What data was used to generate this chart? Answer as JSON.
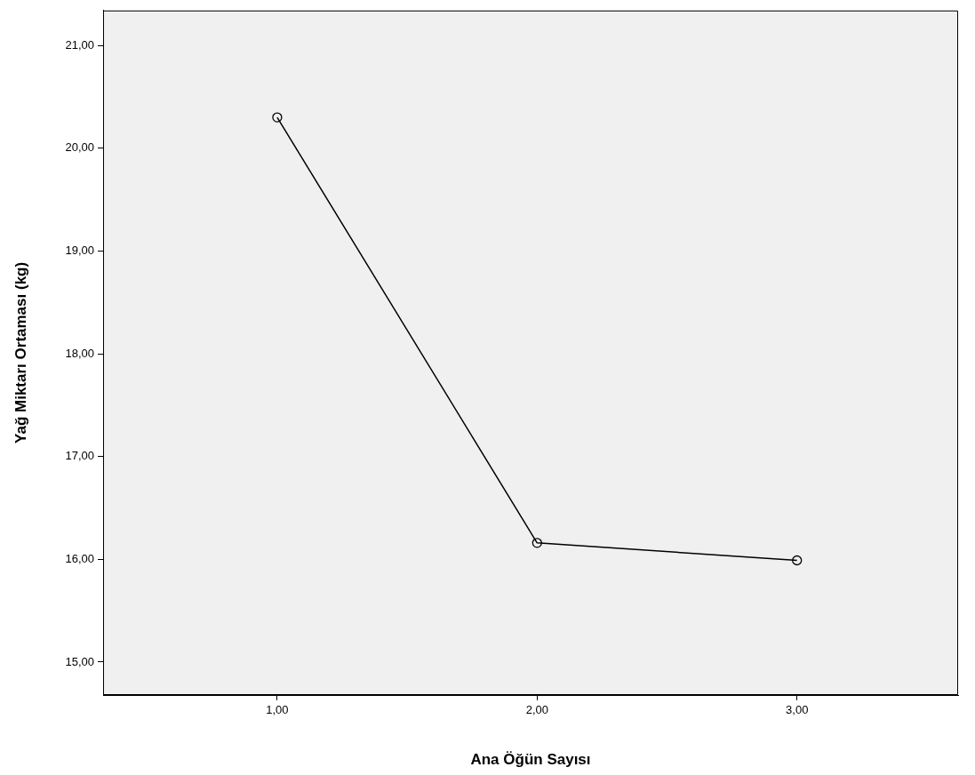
{
  "chart_data": {
    "type": "line",
    "xlabel": "Ana Öğün Sayısı",
    "ylabel": "Yağ Miktarı Ortaması (kg)",
    "x": [
      1,
      2,
      3
    ],
    "series": [
      {
        "color": "#000000",
        "values": [
          20.3,
          16.16,
          15.99
        ]
      }
    ],
    "marker": "circle",
    "line_style": "solid",
    "xlim": [
      0.33,
      3.62
    ],
    "xticks": [
      {
        "value": 1,
        "label": "1,00"
      },
      {
        "value": 2,
        "label": "2,00"
      },
      {
        "value": 3,
        "label": "3,00"
      }
    ],
    "ylim": [
      14.68,
      21.34
    ],
    "yticks": [
      {
        "value": 15,
        "label": "15,00"
      },
      {
        "value": 16,
        "label": "16,00"
      },
      {
        "value": 17,
        "label": "17,00"
      },
      {
        "value": 18,
        "label": "18,00"
      },
      {
        "value": 19,
        "label": "19,00"
      },
      {
        "value": 20,
        "label": "20,00"
      },
      {
        "value": 21,
        "label": "21,00"
      }
    ]
  }
}
